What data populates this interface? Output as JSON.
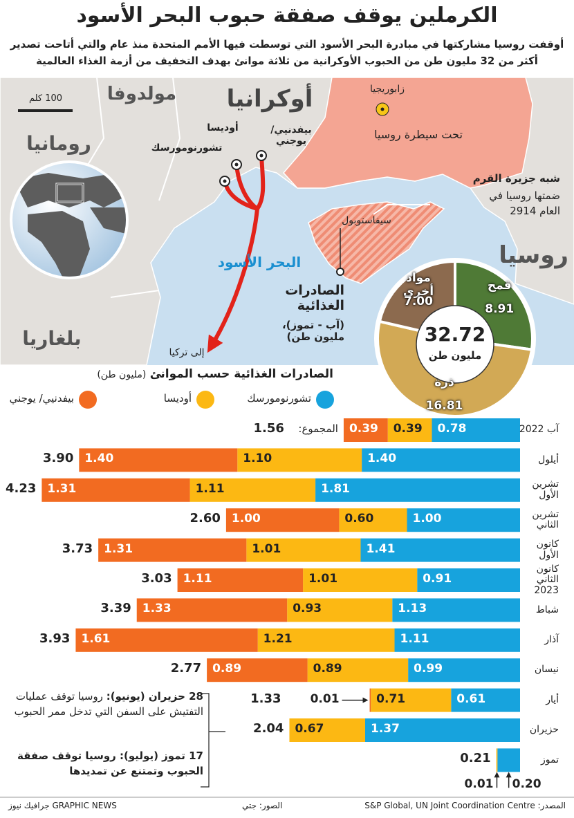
{
  "header": {
    "title": "الكرملين يوقف صفقة حبوب البحر الأسود",
    "subtitle": "أوقفت روسيا مشاركتها في مبادرة البحر الأسود التي توسطت فيها الأمم المتحدة منذ عام والتي أتاحت تصدير أكثر من 32 مليون طن من الحبوب الأوكرانية من ثلاثة موانئ بهدف التخفيف من أزمة الغذاء العالمية"
  },
  "map": {
    "moldova": "مولدوفا",
    "ukraine": "أوكرانيا",
    "romania": "رومانيا",
    "bulgaria": "بلغاريا",
    "russia": "روسيا",
    "zaporizhzhia": "زابوريجيا",
    "occupied": "تحت سيطرة روسيا",
    "crimea_title": "شبه جزيرة القرم",
    "crimea_text": "ضمتها روسيا في العام 2914",
    "sevastopol": "سيفاستوبول",
    "black_sea": "البحر الأسود",
    "to_turkey": "إلى تركيا",
    "scale": "100 كلم",
    "ports": [
      "بيفدنيي/ يوجني",
      "أوديسا",
      "تشورنومورسك"
    ]
  },
  "annotations": [
    {
      "date": "28 حزيران (يونيو):",
      "text": "روسيا توقف عمليات التفتيش على السفن التي تدخل ممر الحبوب"
    },
    {
      "date": "17 تموز (يوليو):",
      "text": "روسيا توقف صفقة الحبوب وتمتنع عن تمديدها"
    }
  ],
  "footer": {
    "source": "المصدر: S&P Global, UN Joint Coordination Centre",
    "photos": "الصور: جتي",
    "credit": "GRAPHIC NEWS جرافيك نيوز"
  },
  "chart_data": [
    {
      "type": "pie",
      "title": "الصادرات الغذائية",
      "subtitle": "(آب - تموز)، مليون طن)",
      "categories": [
        "قمح",
        "ذرة",
        "مواد أخرى"
      ],
      "values": [
        8.91,
        16.81,
        7.0
      ],
      "value_labels": [
        "8.91",
        "16.81",
        "7.00"
      ],
      "colors": [
        "#4f7a36",
        "#d2a955",
        "#8c6a4e"
      ],
      "total": 32.72,
      "total_unit": "مليون طن"
    },
    {
      "type": "bar",
      "orientation": "horizontal",
      "stacked": true,
      "title": "الصادرات الغذائية حسب الموانئ",
      "subtitle": "(مليون طن)",
      "categories": [
        "آب 2022",
        "أيلول",
        "تشرين الأول",
        "تشرين الثاني",
        "كانون الأول",
        "كانون الثاني 2023",
        "شباط",
        "آذار",
        "نيسان",
        "أيار",
        "حزيران",
        "تموز"
      ],
      "series": [
        {
          "name": "تشورنومورسك",
          "color": "#17a3dd",
          "values": [
            0.78,
            1.4,
            1.81,
            1.0,
            1.41,
            0.91,
            1.13,
            1.11,
            0.99,
            0.61,
            1.37,
            0.2
          ],
          "value_labels": [
            "0.78",
            "1.40",
            "1.81",
            "1.00",
            "1.41",
            "0.91",
            "1.13",
            "1.11",
            "0.99",
            "0.61",
            "1.37",
            "0.20"
          ]
        },
        {
          "name": "أوديسا",
          "color": "#fcb813",
          "values": [
            0.39,
            1.1,
            1.11,
            0.6,
            1.01,
            1.01,
            0.93,
            1.21,
            0.89,
            0.71,
            0.67,
            0.01
          ],
          "value_labels": [
            "0.39",
            "1.10",
            "1.11",
            "0.60",
            "1.01",
            "1.01",
            "0.93",
            "1.21",
            "0.89",
            "0.71",
            "0.67",
            "0.01"
          ]
        },
        {
          "name": "بيفدنيي/ يوجني",
          "color": "#f26b21",
          "values": [
            0.39,
            1.4,
            1.31,
            1.0,
            1.31,
            1.11,
            1.33,
            1.61,
            0.89,
            0.01,
            null,
            null
          ],
          "value_labels": [
            "0.39",
            "1.40",
            "1.31",
            "1.00",
            "1.31",
            "1.11",
            "1.33",
            "1.61",
            "0.89",
            "0.01",
            null,
            null
          ]
        }
      ],
      "totals": [
        1.56,
        3.9,
        4.23,
        2.6,
        3.73,
        3.03,
        3.39,
        3.93,
        2.77,
        1.33,
        2.04,
        0.21
      ],
      "total_labels": [
        "1.56",
        "3.90",
        "4.23",
        "2.60",
        "3.73",
        "3.03",
        "3.39",
        "3.93",
        "2.77",
        "1.33",
        "2.04",
        "0.21"
      ],
      "total_prefix": "المجموع:"
    }
  ]
}
